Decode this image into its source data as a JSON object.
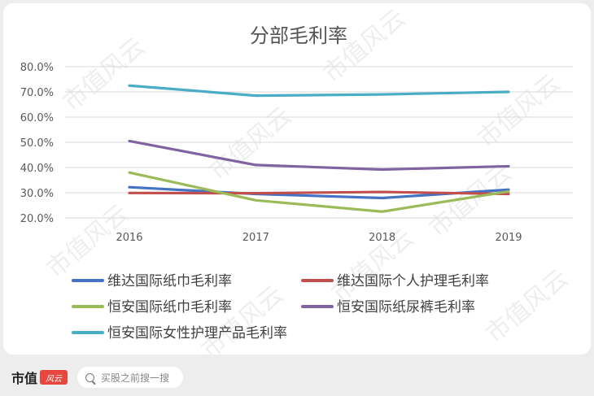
{
  "chart_data": {
    "type": "line",
    "title": "分部毛利率",
    "categories": [
      "2016",
      "2017",
      "2018",
      "2019"
    ],
    "ylim": [
      0.2,
      0.8
    ],
    "yticks": [
      "80.0%",
      "70.0%",
      "60.0%",
      "50.0%",
      "40.0%",
      "30.0%",
      "20.0%"
    ],
    "grid": true,
    "legend_position": "bottom",
    "series": [
      {
        "name": "维达国际纸巾毛利率",
        "values": [
          0.322,
          0.295,
          0.279,
          0.312
        ],
        "color": "#4472c4"
      },
      {
        "name": "维达国际个人护理毛利率",
        "values": [
          0.299,
          0.298,
          0.303,
          0.295
        ],
        "color": "#c0504d"
      },
      {
        "name": "恒安国际纸巾毛利率",
        "values": [
          0.38,
          0.27,
          0.225,
          0.305
        ],
        "color": "#9bbb59"
      },
      {
        "name": "恒安国际纸尿裤毛利率",
        "values": [
          0.505,
          0.41,
          0.392,
          0.405
        ],
        "color": "#8064a2"
      },
      {
        "name": "恒安国际女性护理产品毛利率",
        "values": [
          0.725,
          0.685,
          0.69,
          0.7
        ],
        "color": "#4bacc6"
      }
    ]
  },
  "watermark": "市值风云",
  "footer": {
    "logo_text": "市值",
    "logo_badge": "风云",
    "search_placeholder": "买股之前搜一搜"
  }
}
